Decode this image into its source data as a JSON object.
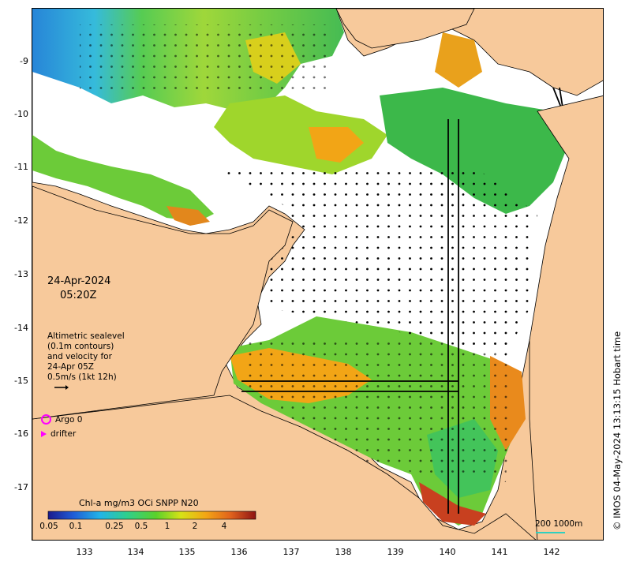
{
  "map": {
    "date": "24-Apr-2024",
    "time": "05:20Z",
    "altimetry_lines": [
      "Altimetric sealevel",
      "(0.1m contours)",
      "and velocity for",
      "24-Apr 05Z",
      "0.5m/s (1kt 12h)"
    ],
    "legend_argo": "Argo 0",
    "legend_drifter": "drifter",
    "colorbar_title": "Chl-a mg/m3 OCi SNPP N20",
    "colorbar_ticks": [
      "0.05",
      "0.1",
      "0.25",
      "0.5",
      "1",
      "2",
      "4"
    ],
    "scale_label": "200  1000m",
    "credit": "© IMOS 04-May-2024 13:13:15 Hobart time",
    "x_axis": {
      "ticks": [
        "133",
        "134",
        "135",
        "136",
        "137",
        "138",
        "139",
        "140",
        "141",
        "142"
      ]
    },
    "y_axis": {
      "ticks": [
        "-9",
        "-10",
        "-11",
        "-12",
        "-13",
        "-14",
        "-15",
        "-16",
        "-17"
      ]
    },
    "colors": {
      "land": "#f7c99b",
      "no_data": "#ffffff",
      "chl_low": "#1a6fd0",
      "chl_mid": "#35c43a",
      "chl_high": "#f2a516",
      "chl_max": "#c0392b",
      "marker": "#ff00ff"
    }
  }
}
